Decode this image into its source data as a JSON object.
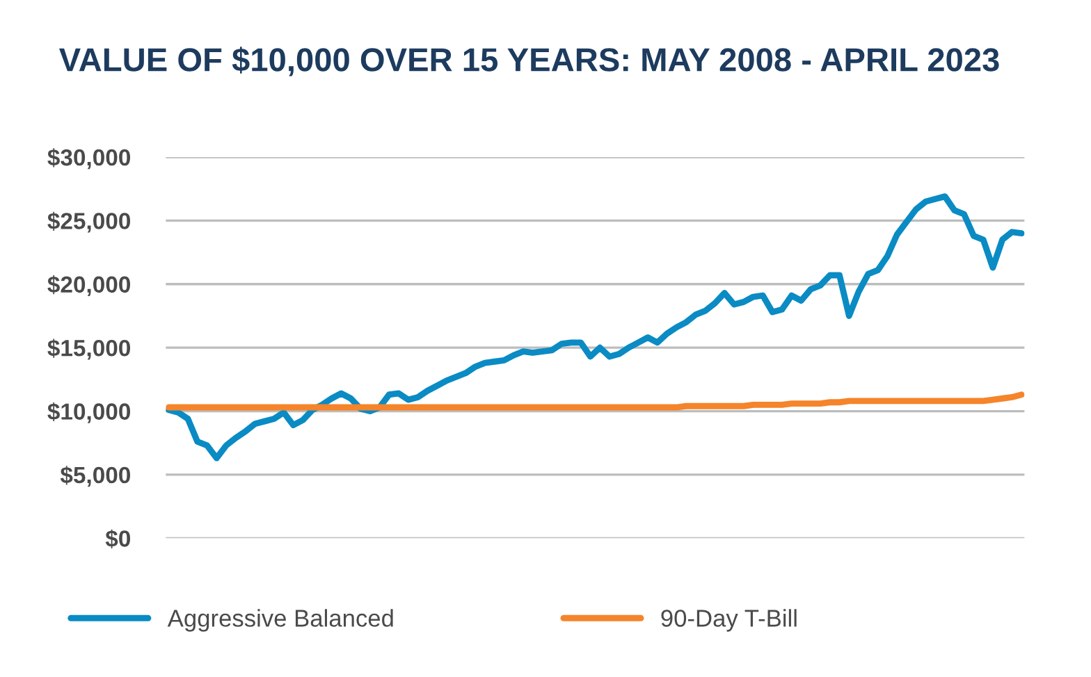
{
  "chart_data": {
    "type": "line",
    "title": "VALUE OF $10,000 OVER 15 YEARS: MAY 2008 - APRIL 2023",
    "categories": [
      null,
      null,
      null,
      null,
      null,
      null,
      null,
      null,
      null,
      null,
      null,
      null,
      null,
      null,
      null,
      null,
      null,
      null,
      null,
      null,
      null,
      null,
      null,
      null,
      null,
      null,
      null,
      null,
      null,
      null,
      null,
      null,
      null,
      null,
      null,
      null,
      null,
      null,
      null,
      null,
      null,
      null,
      null,
      null,
      null,
      null,
      null,
      null,
      null,
      null,
      null,
      null,
      null,
      null,
      null,
      null,
      null,
      null,
      null,
      null,
      null,
      null,
      null,
      null,
      null,
      null,
      null,
      null,
      null,
      null,
      null,
      null,
      null,
      null,
      null,
      null,
      null,
      null,
      null,
      null,
      null,
      null,
      null,
      null,
      null,
      null,
      null,
      null,
      null,
      null
    ],
    "ylim": [
      0,
      30000
    ],
    "yticks": [
      {
        "value": 0,
        "label": "$0"
      },
      {
        "value": 5000,
        "label": "$5,000"
      },
      {
        "value": 10000,
        "label": "$10,000"
      },
      {
        "value": 15000,
        "label": "$15,000"
      },
      {
        "value": 20000,
        "label": "$20,000"
      },
      {
        "value": 25000,
        "label": "$25,000"
      },
      {
        "value": 30000,
        "label": "$30,000"
      }
    ],
    "grid": "y",
    "legend": "bottom",
    "tick_labels": "y",
    "marker": "none",
    "line_style": "solid",
    "series": [
      {
        "name": "Aggressive Balanced",
        "color": "#0a8bc4",
        "values": [
          10100,
          9900,
          9400,
          7600,
          7300,
          6300,
          7300,
          7900,
          8400,
          9000,
          9200,
          9400,
          9900,
          8900,
          9300,
          10100,
          10500,
          11000,
          11400,
          11000,
          10200,
          10000,
          10300,
          11300,
          11400,
          10900,
          11100,
          11600,
          12000,
          12400,
          12700,
          13000,
          13500,
          13800,
          13900,
          14000,
          14400,
          14700,
          14600,
          14700,
          14800,
          15300,
          15400,
          15400,
          14300,
          15000,
          14300,
          14500,
          15000,
          15400,
          15800,
          15400,
          16100,
          16600,
          17000,
          17600,
          17900,
          18500,
          19300,
          18400,
          18600,
          19000,
          19100,
          17800,
          18000,
          19100,
          18700,
          19600,
          19900,
          20700,
          20700,
          17500,
          19400,
          20800,
          21100,
          22200,
          23900,
          24900,
          25900,
          26500,
          26700,
          26900,
          25800,
          25500,
          23800,
          23500,
          21300,
          23500,
          24100,
          24000
        ]
      },
      {
        "name": "90-Day T-Bill",
        "color": "#f5842a",
        "values": [
          10300,
          10300,
          10300,
          10300,
          10300,
          10300,
          10300,
          10300,
          10300,
          10300,
          10300,
          10300,
          10300,
          10300,
          10300,
          10300,
          10300,
          10300,
          10300,
          10300,
          10300,
          10300,
          10300,
          10300,
          10300,
          10300,
          10300,
          10300,
          10300,
          10300,
          10300,
          10300,
          10300,
          10300,
          10300,
          10300,
          10300,
          10300,
          10300,
          10300,
          10300,
          10300,
          10300,
          10300,
          10300,
          10300,
          10300,
          10300,
          10300,
          10300,
          10300,
          10300,
          10300,
          10300,
          10400,
          10400,
          10400,
          10400,
          10400,
          10400,
          10400,
          10500,
          10500,
          10500,
          10500,
          10600,
          10600,
          10600,
          10600,
          10700,
          10700,
          10800,
          10800,
          10800,
          10800,
          10800,
          10800,
          10800,
          10800,
          10800,
          10800,
          10800,
          10800,
          10800,
          10800,
          10800,
          10900,
          11000,
          11100,
          11300
        ]
      }
    ]
  }
}
